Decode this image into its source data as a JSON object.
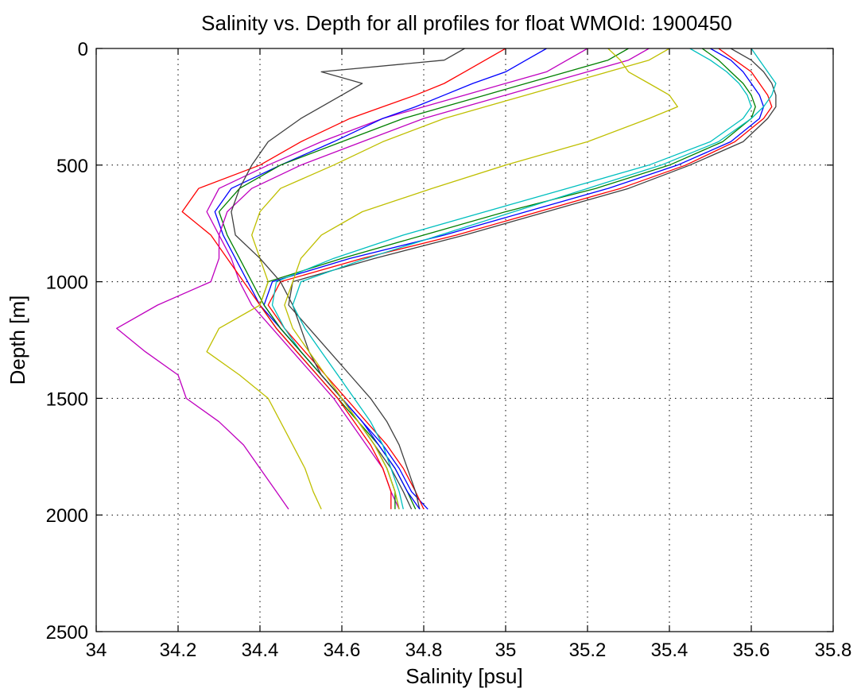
{
  "chart_data": {
    "type": "line",
    "title": "Salinity vs. Depth for all profiles for float WMOId: 1900450",
    "xlabel": "Salinity [psu]",
    "ylabel": "Depth [m]",
    "xlim": [
      34,
      35.8
    ],
    "ylim": [
      0,
      2500
    ],
    "y_reversed": true,
    "x_ticks": [
      "34",
      "34.2",
      "34.4",
      "34.6",
      "34.8",
      "35",
      "35.2",
      "35.4",
      "35.6",
      "35.8"
    ],
    "x_tick_values": [
      34,
      34.2,
      34.4,
      34.6,
      34.8,
      35,
      35.2,
      35.4,
      35.6,
      35.8
    ],
    "y_ticks": [
      "0",
      "500",
      "1000",
      "1500",
      "2000",
      "2500"
    ],
    "y_tick_values": [
      0,
      500,
      1000,
      1500,
      2000,
      2500
    ],
    "grid": true,
    "series_colors": [
      "#0000ff",
      "#008000",
      "#ff0000",
      "#00bfbf",
      "#bf00bf",
      "#bfbf00",
      "#404040"
    ],
    "depth_profile": [
      0,
      50,
      100,
      150,
      200,
      250,
      300,
      400,
      500,
      600,
      700,
      800,
      900,
      1000,
      1100,
      1200,
      1300,
      1400,
      1500,
      1600,
      1700,
      1800,
      1900,
      1975
    ],
    "series": [
      {
        "color": "#0000ff",
        "values": [
          35.5,
          35.55,
          35.58,
          35.6,
          35.62,
          35.63,
          35.62,
          35.55,
          35.42,
          35.25,
          35.05,
          34.85,
          34.62,
          34.43,
          34.41,
          34.45,
          34.5,
          34.55,
          34.6,
          34.65,
          34.7,
          34.74,
          34.77,
          34.81
        ]
      },
      {
        "color": "#008000",
        "values": [
          35.48,
          35.52,
          35.55,
          35.58,
          35.6,
          35.61,
          35.6,
          35.53,
          35.4,
          35.22,
          35.0,
          34.8,
          34.6,
          34.42,
          34.4,
          34.44,
          34.49,
          34.54,
          34.59,
          34.64,
          34.69,
          34.73,
          34.76,
          34.78
        ]
      },
      {
        "color": "#ff0000",
        "values": [
          35.52,
          35.56,
          35.6,
          35.62,
          35.64,
          35.65,
          35.63,
          35.56,
          35.44,
          35.28,
          35.08,
          34.88,
          34.65,
          34.45,
          34.42,
          34.46,
          34.51,
          34.56,
          34.61,
          34.66,
          34.71,
          34.75,
          34.78,
          34.8
        ]
      },
      {
        "color": "#00bfbf",
        "values": [
          35.45,
          35.5,
          35.54,
          35.57,
          35.59,
          35.6,
          35.58,
          35.5,
          35.35,
          35.15,
          34.95,
          34.75,
          34.58,
          34.44,
          34.43,
          34.46,
          34.5,
          34.55,
          34.6,
          34.64,
          34.68,
          34.71,
          34.73,
          34.74
        ]
      },
      {
        "color": "#404040",
        "values": [
          35.55,
          35.6,
          35.63,
          35.65,
          35.66,
          35.66,
          35.64,
          35.58,
          35.45,
          35.3,
          35.1,
          34.9,
          34.68,
          34.48,
          34.47,
          34.52,
          34.57,
          34.62,
          34.67,
          34.71,
          34.74,
          34.76,
          34.78,
          34.79
        ]
      },
      {
        "color": "#bf00bf",
        "values": [
          35.2,
          35.15,
          35.1,
          35.0,
          34.9,
          34.8,
          34.7,
          34.55,
          34.42,
          34.3,
          34.27,
          34.3,
          34.33,
          34.35,
          34.38,
          34.43,
          34.48,
          34.53,
          34.58,
          34.62,
          34.66,
          34.7,
          34.72,
          34.74
        ]
      },
      {
        "color": "#0000ff",
        "values": [
          35.1,
          35.05,
          35.0,
          34.92,
          34.85,
          34.78,
          34.7,
          34.58,
          34.45,
          34.33,
          34.29,
          34.31,
          34.34,
          34.37,
          34.4,
          34.45,
          34.5,
          34.55,
          34.6,
          34.65,
          34.69,
          34.73,
          34.76,
          34.79
        ]
      },
      {
        "color": "#008000",
        "values": [
          35.3,
          35.25,
          35.15,
          35.05,
          34.95,
          34.85,
          34.75,
          34.6,
          34.45,
          34.35,
          34.3,
          34.32,
          34.35,
          34.38,
          34.41,
          34.45,
          34.5,
          34.55,
          34.6,
          34.64,
          34.68,
          34.71,
          34.73,
          34.73
        ]
      },
      {
        "color": "#ff0000",
        "values": [
          35.0,
          34.95,
          34.9,
          34.85,
          34.78,
          34.7,
          34.62,
          34.5,
          34.4,
          34.25,
          34.21,
          34.28,
          34.32,
          34.36,
          34.4,
          34.44,
          34.49,
          34.54,
          34.59,
          34.63,
          34.67,
          34.7,
          34.72,
          34.72
        ]
      },
      {
        "color": "#bfbf00",
        "values": [
          35.4,
          35.35,
          35.25,
          35.15,
          35.05,
          34.95,
          34.85,
          34.7,
          34.58,
          34.45,
          34.4,
          34.38,
          34.4,
          34.42,
          34.4,
          34.3,
          34.27,
          34.35,
          34.42,
          34.45,
          34.48,
          34.51,
          34.53,
          34.55
        ]
      },
      {
        "color": "#bf00bf",
        "values": [
          35.35,
          35.3,
          35.2,
          35.1,
          35.0,
          34.9,
          34.8,
          34.65,
          34.5,
          34.38,
          34.32,
          34.3,
          34.3,
          34.28,
          34.15,
          34.05,
          34.12,
          34.2,
          34.22,
          34.3,
          34.36,
          34.4,
          34.44,
          34.47
        ]
      },
      {
        "color": "#404040",
        "values": [
          34.9,
          34.85,
          34.55,
          34.65,
          34.6,
          34.55,
          34.5,
          34.42,
          34.38,
          34.35,
          34.33,
          34.34,
          34.4,
          34.45,
          34.48,
          34.5,
          34.52,
          34.55,
          34.6,
          34.64,
          34.68,
          34.72,
          34.75,
          34.77
        ]
      },
      {
        "color": "#00bfbf",
        "values": [
          35.6,
          35.62,
          35.64,
          35.66,
          35.65,
          35.63,
          35.6,
          35.52,
          35.38,
          35.2,
          35.02,
          34.84,
          34.66,
          34.5,
          34.48,
          34.51,
          34.55,
          34.59,
          34.63,
          34.67,
          34.7,
          34.72,
          34.74,
          34.75
        ]
      },
      {
        "color": "#bfbf00",
        "values": [
          35.25,
          35.28,
          35.3,
          35.35,
          35.4,
          35.42,
          35.35,
          35.2,
          35.0,
          34.82,
          34.65,
          34.55,
          34.5,
          34.48,
          34.46,
          34.48,
          34.52,
          34.56,
          34.6,
          34.64,
          34.68,
          34.71,
          34.73,
          34.74
        ]
      }
    ]
  }
}
